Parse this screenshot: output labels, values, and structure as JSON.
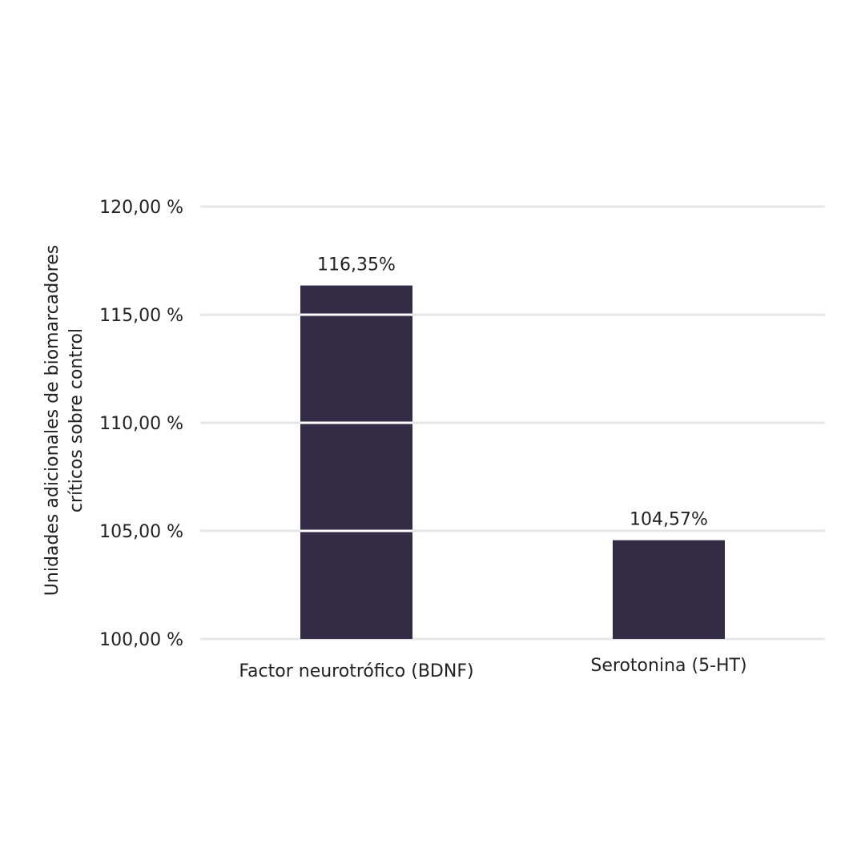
{
  "chart_data": {
    "type": "bar",
    "categories": [
      "Factor neurotrófico (BDNF)",
      "Serotonina (5-HT)"
    ],
    "values": [
      116.35,
      104.57
    ],
    "value_labels": [
      "116,35%",
      "104,57%"
    ],
    "ylabel": "Unidades adicionales de biomarcadores críticos sobre control",
    "ylabel_lines": [
      "Unidades adicionales de biomarcadores",
      "críticos sobre control"
    ],
    "ylim": [
      100,
      120
    ],
    "yticks": [
      100,
      105,
      110,
      115,
      120
    ],
    "ytick_labels": [
      "100,00 %",
      "105,00 %",
      "110,00 %",
      "115,00 %",
      "120,00 %"
    ],
    "grid": true,
    "bar_color": "#342b47",
    "grid_color": "#e6e6e9"
  }
}
